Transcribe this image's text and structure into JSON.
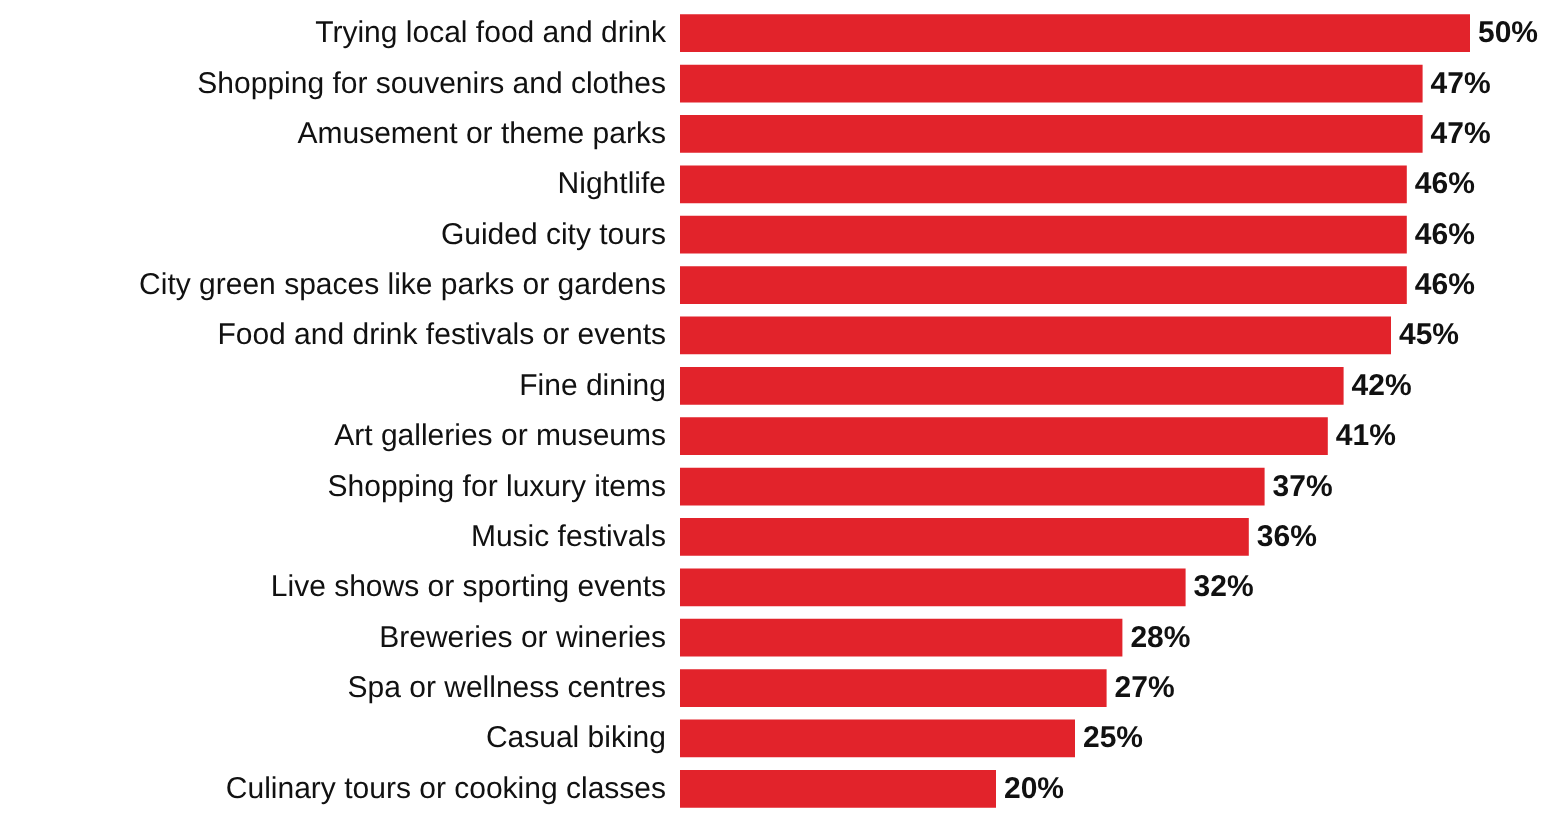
{
  "chart_data": {
    "type": "bar",
    "orientation": "horizontal",
    "color": "#e2232b",
    "categories": [
      "Trying local food and drink",
      "Shopping for souvenirs and clothes",
      "Amusement or theme parks",
      "Nightlife",
      "Guided city tours",
      "City green spaces like parks or gardens",
      "Food and drink festivals or events",
      "Fine dining",
      "Art galleries or museums",
      "Shopping for luxury items",
      "Music festivals",
      "Live shows or sporting events",
      "Breweries or wineries",
      "Spa or wellness centres",
      "Casual biking",
      "Culinary tours or cooking classes"
    ],
    "values": [
      50,
      47,
      47,
      46,
      46,
      46,
      45,
      42,
      41,
      37,
      36,
      32,
      28,
      27,
      25,
      20
    ],
    "value_labels": [
      "50%",
      "47%",
      "47%",
      "46%",
      "46%",
      "46%",
      "45%",
      "42%",
      "41%",
      "37%",
      "36%",
      "32%",
      "28%",
      "27%",
      "25%",
      "20%"
    ]
  }
}
